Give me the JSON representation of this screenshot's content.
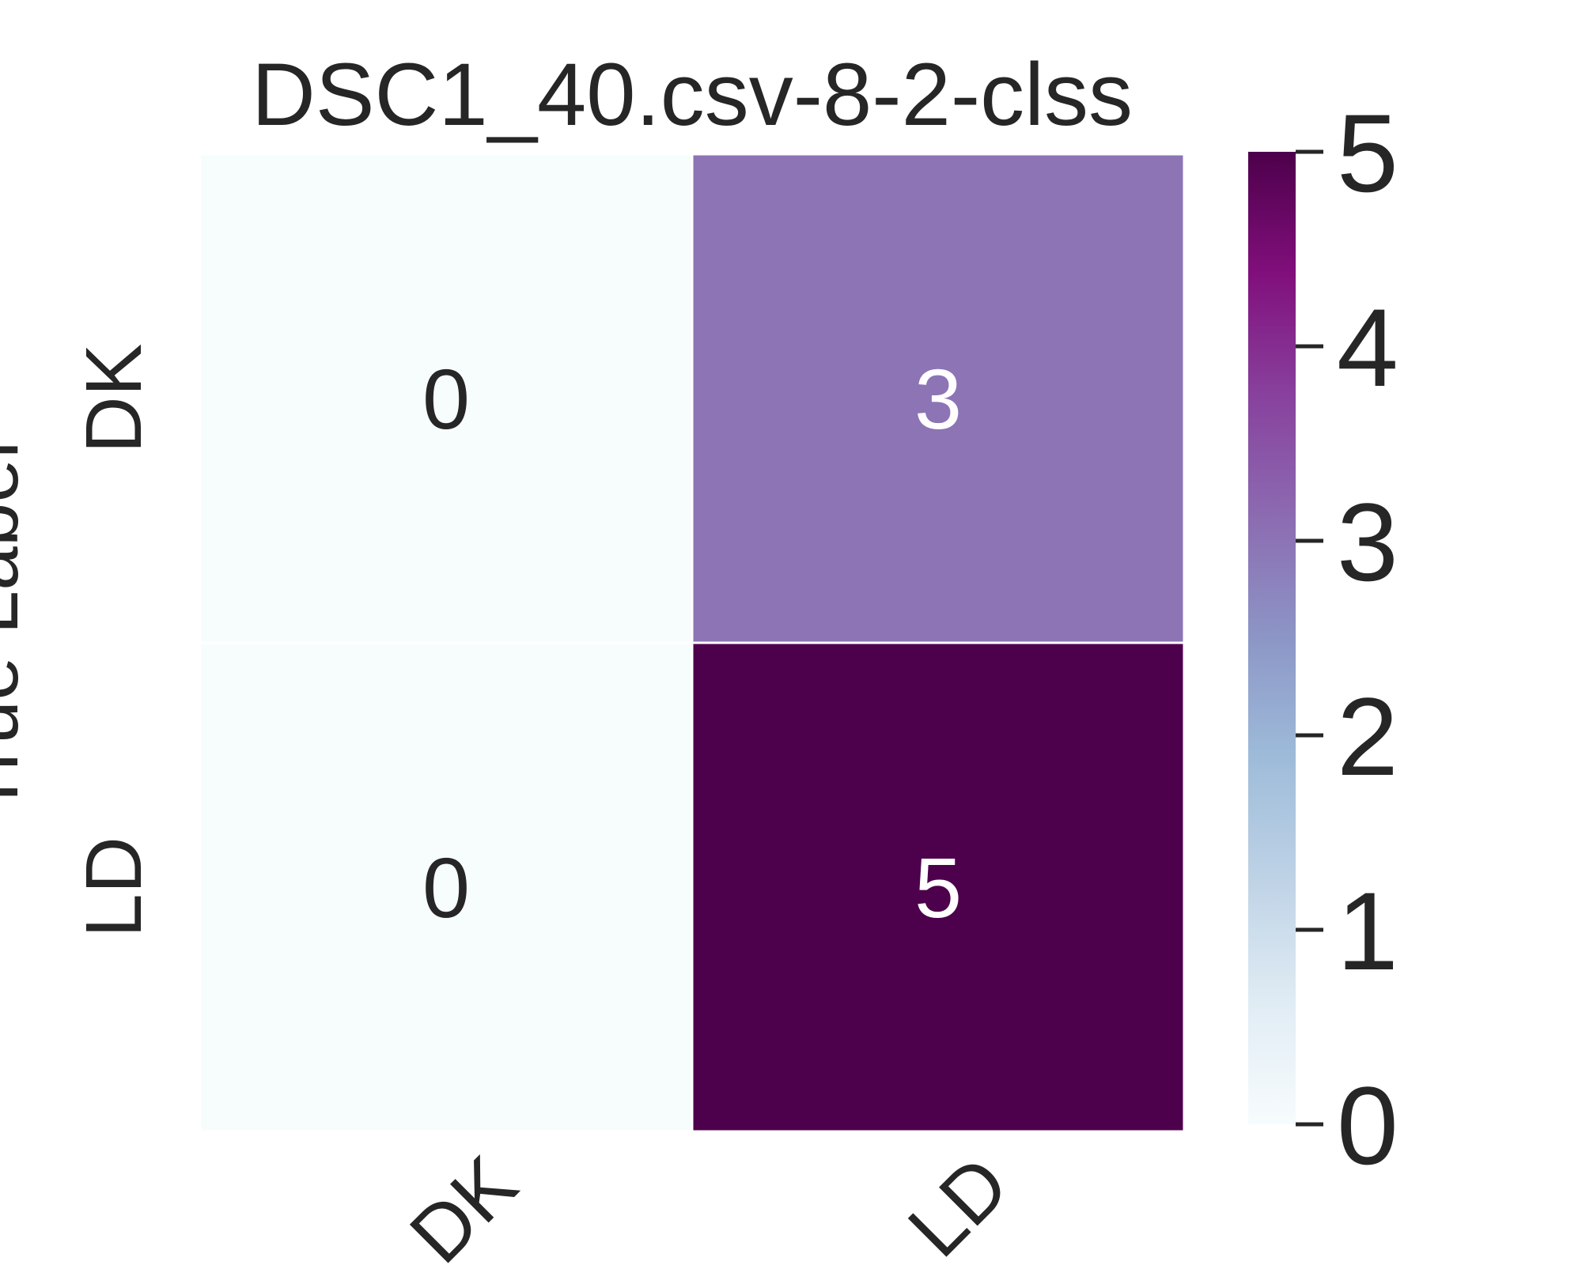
{
  "chart_data": {
    "type": "heatmap",
    "title": "DSC1_40.csv-8-2-clss",
    "ylabel": "True Label",
    "xlabel": "",
    "row_labels": [
      "DK",
      "LD"
    ],
    "col_labels": [
      "DK",
      "LD"
    ],
    "values": [
      [
        0,
        3
      ],
      [
        0,
        5
      ]
    ],
    "colorbar": {
      "colormap": "BuPu",
      "vmin": 0,
      "vmax": 5,
      "ticks": [
        0,
        1,
        2,
        3,
        4,
        5
      ],
      "colors": [
        "#f7fcfd",
        "#e0ecf4",
        "#bfd3e6",
        "#9ebcda",
        "#8c96c6",
        "#8c6bb1",
        "#88419d",
        "#810f7c",
        "#4d004b"
      ]
    },
    "annotation_colors": {
      "light": "#ffffff",
      "dark": "#262626"
    }
  }
}
